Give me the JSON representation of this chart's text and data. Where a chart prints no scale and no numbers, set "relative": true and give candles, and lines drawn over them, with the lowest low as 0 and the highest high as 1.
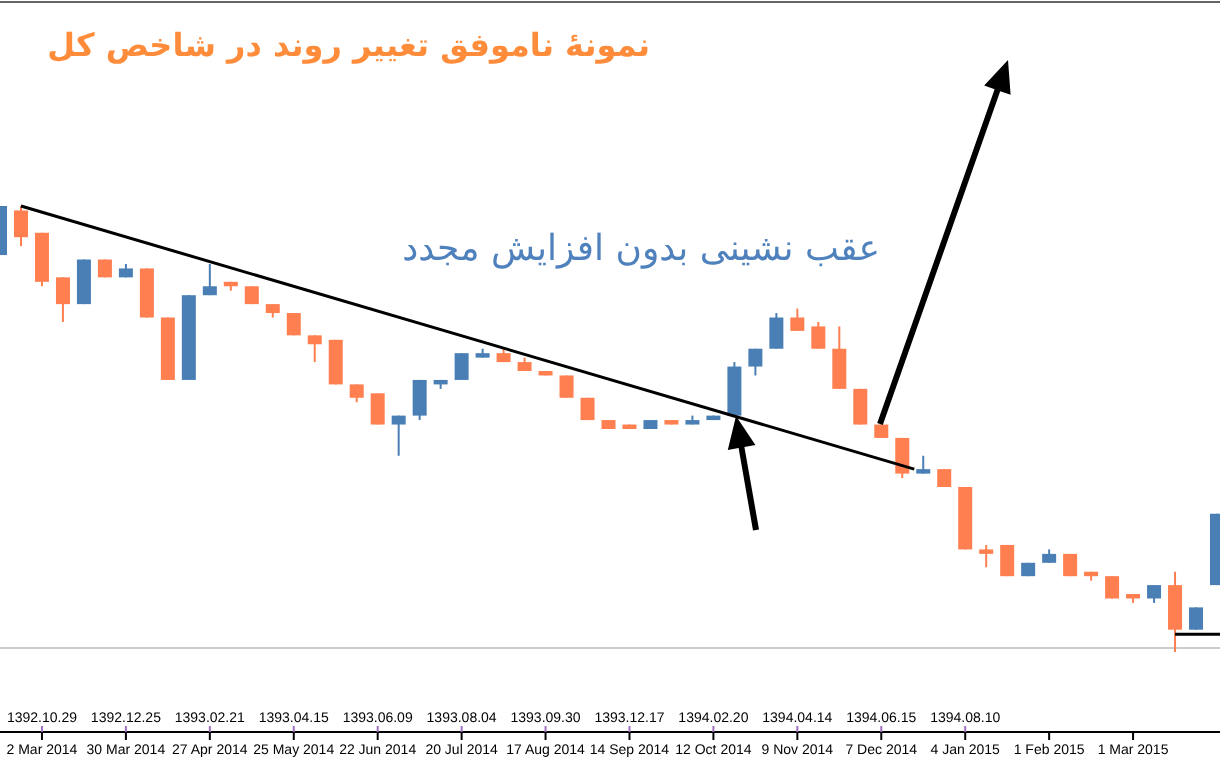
{
  "chart_data": {
    "type": "candlestick",
    "title": "نمونهٔ ناموفق تغییر روند در شاخص کل",
    "relative": true,
    "annotations": [
      "عقب نشینی بدون افزایش مجدد"
    ],
    "xlim": [
      "2014-02-16",
      "2015-03-30"
    ],
    "xticks": [
      {
        "value": "2014-03-02",
        "label": "2 Mar 2014"
      },
      {
        "value": "2014-03-30",
        "label": "30 Mar 2014"
      },
      {
        "value": "2014-04-27",
        "label": "27 Apr 2014"
      },
      {
        "value": "2014-05-25",
        "label": "25 May 2014"
      },
      {
        "value": "2014-06-22",
        "label": "22 Jun 2014"
      },
      {
        "value": "2014-07-20",
        "label": "20 Jul 2014"
      },
      {
        "value": "2014-08-17",
        "label": "17 Aug 2014"
      },
      {
        "value": "2014-09-14",
        "label": "14 Sep 2014"
      },
      {
        "value": "2014-10-12",
        "label": "12 Oct 2014"
      },
      {
        "value": "2014-11-09",
        "label": "9 Nov 2014"
      },
      {
        "value": "2014-12-07",
        "label": "7 Dec 2014"
      },
      {
        "value": "2015-01-04",
        "label": "4 Jan 2015"
      },
      {
        "value": "2015-02-01",
        "label": "1 Feb 2015"
      },
      {
        "value": "2015-03-01",
        "label": "1 Mar 2015"
      }
    ],
    "x2lim": [
      "2014-02-16",
      "2015-03-30"
    ],
    "x2ticks": [
      {
        "value": "2014-03-02",
        "label": "1392.10.29"
      },
      {
        "value": "2014-03-30",
        "label": "1392.12.25"
      },
      {
        "value": "2014-04-27",
        "label": "1393.02.21"
      },
      {
        "value": "2014-05-25",
        "label": "1393.04.15"
      },
      {
        "value": "2014-06-22",
        "label": "1393.06.09"
      },
      {
        "value": "2014-07-20",
        "label": "1393.08.04"
      },
      {
        "value": "2014-08-17",
        "label": "1393.09.30"
      },
      {
        "value": "2014-09-14",
        "label": "1393.12.17"
      },
      {
        "value": "2014-10-12",
        "label": "1394.02.20"
      },
      {
        "value": "2014-11-09",
        "label": "1394.04.14"
      },
      {
        "value": "2014-12-07",
        "label": "1394.06.15"
      },
      {
        "value": "2015-01-04",
        "label": "1394.08.10"
      }
    ],
    "tick_labels": "x",
    "series": [
      {
        "x": [
          "2014-02-16",
          "2014-02-23",
          "2014-03-02",
          "2014-03-09",
          "2014-03-16",
          "2014-03-23",
          "2014-03-30",
          "2014-04-06",
          "2014-04-13",
          "2014-04-20",
          "2014-04-27",
          "2014-05-04",
          "2014-05-11",
          "2014-05-18",
          "2014-05-25",
          "2014-06-01",
          "2014-06-08",
          "2014-06-15",
          "2014-06-22",
          "2014-06-29",
          "2014-07-06",
          "2014-07-13",
          "2014-07-20",
          "2014-07-27",
          "2014-08-03",
          "2014-08-10",
          "2014-08-17",
          "2014-08-24",
          "2014-08-31",
          "2014-09-07",
          "2014-09-14",
          "2014-09-21",
          "2014-09-28",
          "2014-10-05",
          "2014-10-12",
          "2014-10-19",
          "2014-10-26",
          "2014-11-02",
          "2014-11-09",
          "2014-11-16",
          "2014-11-23",
          "2014-11-30",
          "2014-12-07",
          "2014-12-14",
          "2014-12-21",
          "2014-12-28",
          "2015-01-04",
          "2015-01-11",
          "2015-01-18",
          "2015-01-25",
          "2015-02-01",
          "2015-02-08",
          "2015-02-15",
          "2015-02-22",
          "2015-03-01",
          "2015-03-08",
          "2015-03-15",
          "2015-03-22",
          "2015-03-29"
        ],
        "ohlc": [
          [
            0.89,
            1.0,
            0.89,
            1.0
          ],
          [
            0.99,
            1.0,
            0.91,
            0.93
          ],
          [
            0.94,
            0.94,
            0.82,
            0.83
          ],
          [
            0.84,
            0.84,
            0.74,
            0.78
          ],
          [
            0.78,
            0.88,
            0.78,
            0.88
          ],
          [
            0.88,
            0.88,
            0.84,
            0.84
          ],
          [
            0.84,
            0.87,
            0.84,
            0.86
          ],
          [
            0.86,
            0.86,
            0.75,
            0.75
          ],
          [
            0.75,
            0.75,
            0.61,
            0.61
          ],
          [
            0.61,
            0.8,
            0.61,
            0.8
          ],
          [
            0.8,
            0.87,
            0.8,
            0.82
          ],
          [
            0.83,
            0.83,
            0.81,
            0.82
          ],
          [
            0.82,
            0.82,
            0.78,
            0.78
          ],
          [
            0.78,
            0.78,
            0.75,
            0.76
          ],
          [
            0.76,
            0.76,
            0.71,
            0.71
          ],
          [
            0.71,
            0.71,
            0.65,
            0.69
          ],
          [
            0.7,
            0.7,
            0.6,
            0.6
          ],
          [
            0.6,
            0.6,
            0.56,
            0.57
          ],
          [
            0.58,
            0.58,
            0.51,
            0.51
          ],
          [
            0.51,
            0.53,
            0.44,
            0.53
          ],
          [
            0.53,
            0.61,
            0.52,
            0.61
          ],
          [
            0.6,
            0.61,
            0.59,
            0.61
          ],
          [
            0.61,
            0.67,
            0.61,
            0.67
          ],
          [
            0.66,
            0.68,
            0.66,
            0.67
          ],
          [
            0.67,
            0.68,
            0.65,
            0.65
          ],
          [
            0.65,
            0.66,
            0.63,
            0.63
          ],
          [
            0.63,
            0.63,
            0.62,
            0.62
          ],
          [
            0.62,
            0.62,
            0.57,
            0.57
          ],
          [
            0.57,
            0.57,
            0.52,
            0.52
          ],
          [
            0.52,
            0.52,
            0.5,
            0.5
          ],
          [
            0.51,
            0.51,
            0.5,
            0.5
          ],
          [
            0.5,
            0.52,
            0.5,
            0.52
          ],
          [
            0.52,
            0.52,
            0.51,
            0.51
          ],
          [
            0.51,
            0.53,
            0.51,
            0.52
          ],
          [
            0.52,
            0.53,
            0.52,
            0.53
          ],
          [
            0.53,
            0.65,
            0.53,
            0.64
          ],
          [
            0.64,
            0.68,
            0.62,
            0.68
          ],
          [
            0.68,
            0.76,
            0.68,
            0.75
          ],
          [
            0.75,
            0.77,
            0.72,
            0.72
          ],
          [
            0.73,
            0.74,
            0.68,
            0.68
          ],
          [
            0.68,
            0.73,
            0.59,
            0.59
          ],
          [
            0.59,
            0.59,
            0.51,
            0.51
          ],
          [
            0.51,
            0.51,
            0.48,
            0.48
          ],
          [
            0.48,
            0.48,
            0.39,
            0.4
          ],
          [
            0.4,
            0.44,
            0.4,
            0.41
          ],
          [
            0.41,
            0.41,
            0.37,
            0.37
          ],
          [
            0.37,
            0.37,
            0.23,
            0.23
          ],
          [
            0.23,
            0.24,
            0.19,
            0.22
          ],
          [
            0.24,
            0.24,
            0.17,
            0.17
          ],
          [
            0.17,
            0.2,
            0.17,
            0.2
          ],
          [
            0.2,
            0.23,
            0.2,
            0.22
          ],
          [
            0.22,
            0.22,
            0.17,
            0.17
          ],
          [
            0.18,
            0.18,
            0.16,
            0.17
          ],
          [
            0.17,
            0.17,
            0.12,
            0.12
          ],
          [
            0.13,
            0.13,
            0.11,
            0.12
          ],
          [
            0.12,
            0.15,
            0.11,
            0.15
          ],
          [
            0.15,
            0.18,
            0,
            0.05
          ],
          [
            0.05,
            0.1,
            0.05,
            0.1
          ],
          [
            0.15,
            0.31,
            0.15,
            0.31
          ]
        ],
        "colors": [
          "#4a7fb5",
          "#ff7f50",
          "#ff7f50",
          "#ff7f50",
          "#4a7fb5",
          "#ff7f50",
          "#4a7fb5",
          "#ff7f50",
          "#ff7f50",
          "#4a7fb5",
          "#4a7fb5",
          "#ff7f50",
          "#ff7f50",
          "#ff7f50",
          "#ff7f50",
          "#ff7f50",
          "#ff7f50",
          "#ff7f50",
          "#ff7f50",
          "#4a7fb5",
          "#4a7fb5",
          "#4a7fb5",
          "#4a7fb5",
          "#4a7fb5",
          "#ff7f50",
          "#ff7f50",
          "#ff7f50",
          "#ff7f50",
          "#ff7f50",
          "#ff7f50",
          "#ff7f50",
          "#4a7fb5",
          "#ff7f50",
          "#4a7fb5",
          "#4a7fb5",
          "#4a7fb5",
          "#4a7fb5",
          "#4a7fb5",
          "#ff7f50",
          "#ff7f50",
          "#ff7f50",
          "#ff7f50",
          "#ff7f50",
          "#ff7f50",
          "#4a7fb5",
          "#ff7f50",
          "#ff7f50",
          "#ff7f50",
          "#ff7f50",
          "#4a7fb5",
          "#4a7fb5",
          "#ff7f50",
          "#ff7f50",
          "#ff7f50",
          "#ff7f50",
          "#4a7fb5",
          "#ff7f50",
          "#4a7fb5",
          "#4a7fb5"
        ]
      },
      {
        "type": "line",
        "color": "#000000",
        "x": [
          "2014-02-23",
          "2014-12-18"
        ],
        "values": [
          1.0,
          0.41
        ]
      },
      {
        "type": "line",
        "color": "#000000",
        "x": [
          "2015-03-15",
          "2015-03-30"
        ],
        "values": [
          0.04,
          0.04
        ]
      }
    ]
  }
}
